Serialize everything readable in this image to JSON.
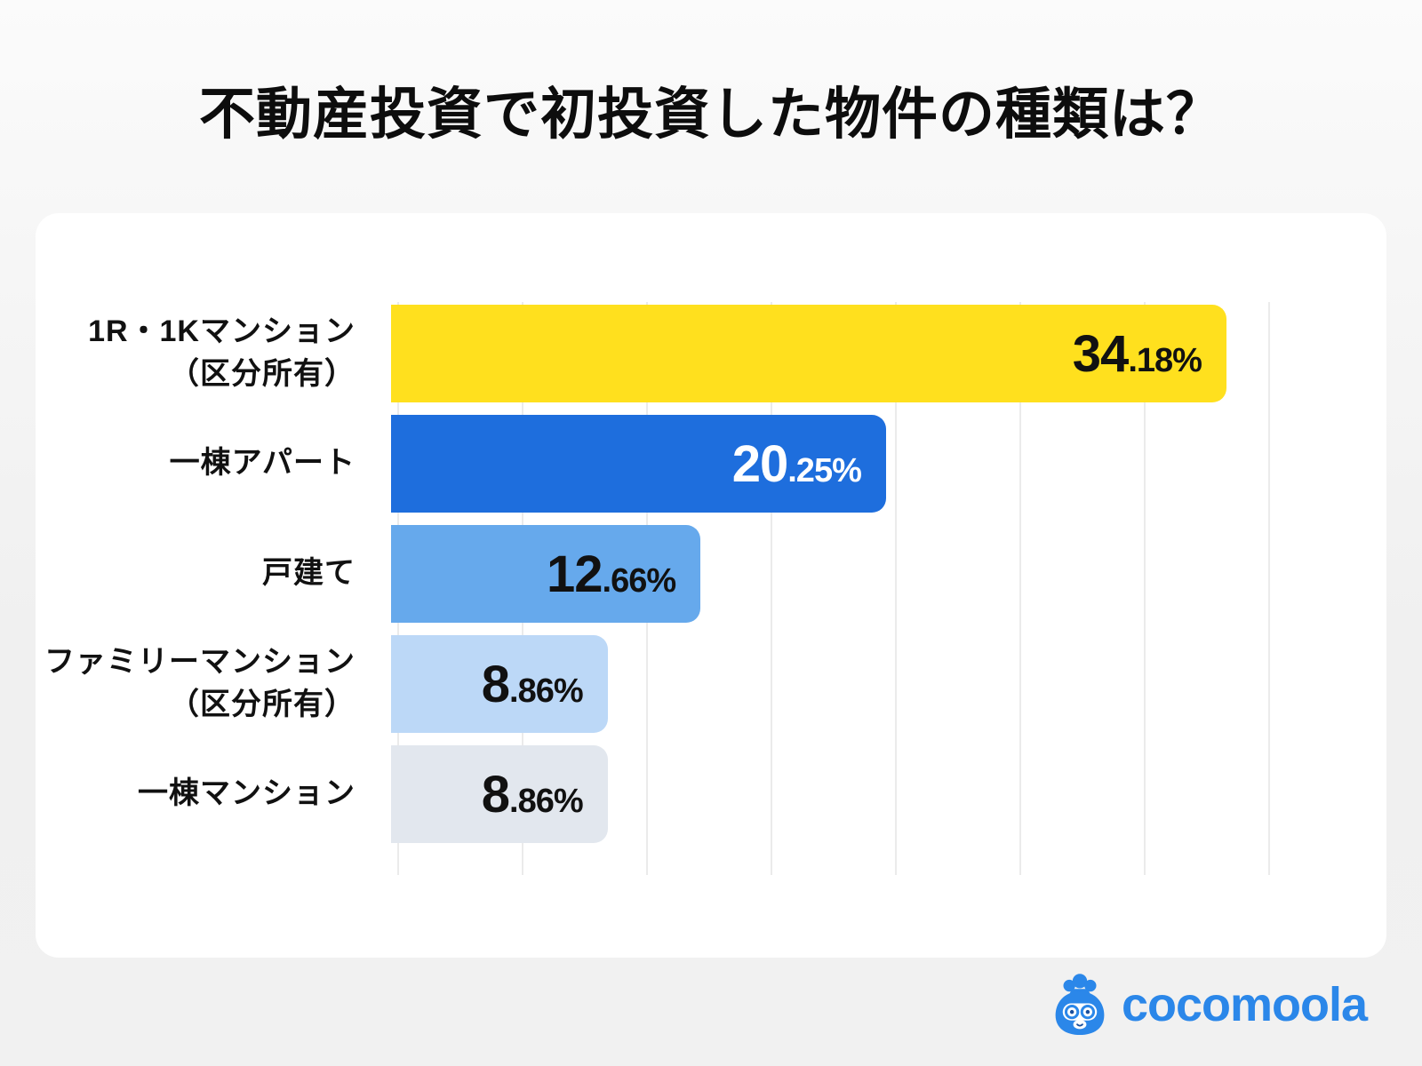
{
  "title": "不動産投資で初投資した物件の種類は？",
  "chart_data": {
    "type": "bar",
    "orientation": "horizontal",
    "title": "不動産投資で初投資した物件の種類は？",
    "categories": [
      "1R・1Kマンション（区分所有）",
      "一棟アパート",
      "戸建て",
      "ファミリーマンション（区分所有）",
      "一棟マンション"
    ],
    "category_lines": [
      [
        "1R・1Kマンション",
        "（区分所有）"
      ],
      [
        "一棟アパート"
      ],
      [
        "戸建て"
      ],
      [
        "ファミリーマンション",
        "（区分所有）"
      ],
      [
        "一棟マンション"
      ]
    ],
    "values": [
      34.18,
      20.25,
      12.66,
      8.86,
      8.86
    ],
    "value_labels": [
      "34.18%",
      "20.25%",
      "12.66%",
      "8.86%",
      "8.86%"
    ],
    "unit": "%",
    "xlim": [
      0,
      40
    ],
    "x_gridline_interval_percent": 5,
    "grid": "vertical-lines-on",
    "legend": "none",
    "bar_colors": [
      "#ffe01e",
      "#1e6edd",
      "#66a9ec",
      "#bcd8f7",
      "#e2e7ee"
    ],
    "value_text_colors": [
      "#111111",
      "#ffffff",
      "#111111",
      "#111111",
      "#111111"
    ]
  },
  "logo": {
    "text": "cocomoola",
    "icon": "money-bag-mascot-icon",
    "brand_color": "#2b87e9"
  }
}
